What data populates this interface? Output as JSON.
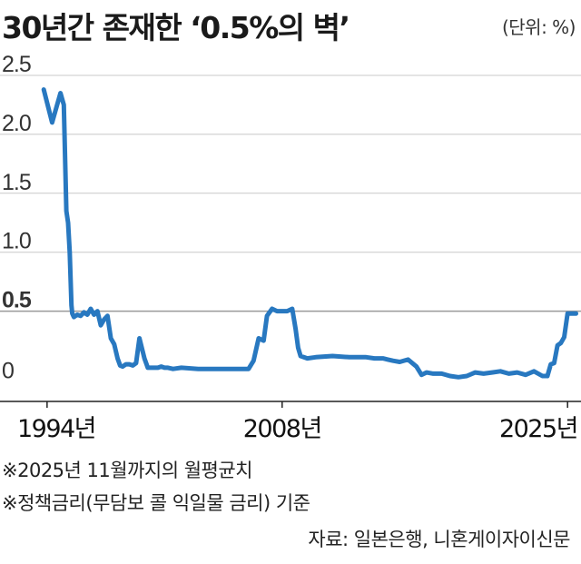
{
  "header": {
    "title": "30년간 존재한 ‘0.5%의 벽’",
    "unit": "(단위: %)"
  },
  "notes": [
    "※2025년 11월까지의 월평균치",
    "※정책금리(무담보 콜 익일물 금리) 기준"
  ],
  "source": "자료: 일본은행, 니혼게이자이신문",
  "colors": {
    "line": "#2878c0",
    "grid": "#c8c8c8",
    "highlight": "#d11f2a",
    "axis": "#222222"
  },
  "chart_data": {
    "type": "line",
    "title": "30년간 존재한 ‘0.5%의 벽’",
    "ylabel": "(단위: %)",
    "xlim": [
      1993.9,
      2025.8
    ],
    "ylim": [
      -0.25,
      2.6
    ],
    "grid": true,
    "highlight_value": 0.5,
    "y_ticks": [
      {
        "value": 2.5,
        "label": "2.5"
      },
      {
        "value": 2.0,
        "label": "2.0"
      },
      {
        "value": 1.5,
        "label": "1.5"
      },
      {
        "value": 1.0,
        "label": "1.0"
      },
      {
        "value": 0.5,
        "label": "0.5"
      },
      {
        "value": 0,
        "label": "0"
      }
    ],
    "x_ticks": [
      {
        "value": 1994,
        "label": "1994년"
      },
      {
        "value": 2008,
        "label": "2008년"
      },
      {
        "value": 2025,
        "label": "2025년"
      }
    ],
    "series": [
      {
        "x": [
          1993.8,
          1994.3,
          1994.8,
          1995.0,
          1995.15,
          1995.25,
          1995.35,
          1995.45,
          1995.5,
          1995.6,
          1995.8,
          1996.0,
          1996.2,
          1996.4,
          1996.6,
          1996.8,
          1997.0,
          1997.2,
          1997.4,
          1997.6,
          1997.8,
          1998.0,
          1998.2,
          1998.35,
          1998.5,
          1998.7,
          1998.9,
          1999.1,
          1999.3,
          1999.5,
          1999.8,
          2000.0,
          2000.3,
          2000.6,
          2000.8,
          2001.0,
          2001.2,
          2001.5,
          2002.0,
          2003.0,
          2004.0,
          2005.0,
          2006.0,
          2006.3,
          2006.6,
          2006.9,
          2007.1,
          2007.4,
          2007.7,
          2008.0,
          2008.3,
          2008.6,
          2008.8,
          2008.95,
          2009.1,
          2009.5,
          2010.0,
          2011.0,
          2012.0,
          2013.0,
          2013.5,
          2014.0,
          2014.3,
          2014.6,
          2015.0,
          2015.5,
          2016.0,
          2016.3,
          2016.6,
          2017.0,
          2017.5,
          2018.0,
          2018.5,
          2019.0,
          2019.5,
          2020.0,
          2020.5,
          2021.0,
          2021.5,
          2022.0,
          2022.5,
          2023.0,
          2023.5,
          2023.8,
          2024.0,
          2024.2,
          2024.4,
          2024.6,
          2024.8,
          2025.0,
          2025.2,
          2025.5
        ],
        "y": [
          2.38,
          2.1,
          2.35,
          2.25,
          1.35,
          1.25,
          1.0,
          0.55,
          0.48,
          0.45,
          0.47,
          0.46,
          0.49,
          0.47,
          0.52,
          0.47,
          0.5,
          0.38,
          0.43,
          0.46,
          0.27,
          0.22,
          0.1,
          0.04,
          0.03,
          0.05,
          0.05,
          0.04,
          0.06,
          0.27,
          0.1,
          0.02,
          0.02,
          0.02,
          0.03,
          0.02,
          0.02,
          0.01,
          0.02,
          0.01,
          0.01,
          0.01,
          0.01,
          0.08,
          0.27,
          0.25,
          0.46,
          0.52,
          0.5,
          0.5,
          0.5,
          0.52,
          0.35,
          0.19,
          0.12,
          0.1,
          0.11,
          0.12,
          0.11,
          0.11,
          0.1,
          0.1,
          0.09,
          0.08,
          0.07,
          0.09,
          0.03,
          -0.04,
          -0.02,
          -0.03,
          -0.03,
          -0.05,
          -0.06,
          -0.05,
          -0.02,
          -0.03,
          -0.02,
          -0.01,
          -0.03,
          -0.02,
          -0.04,
          -0.01,
          -0.05,
          -0.05,
          0.05,
          0.06,
          0.21,
          0.23,
          0.28,
          0.48,
          0.48,
          0.48
        ]
      }
    ]
  }
}
